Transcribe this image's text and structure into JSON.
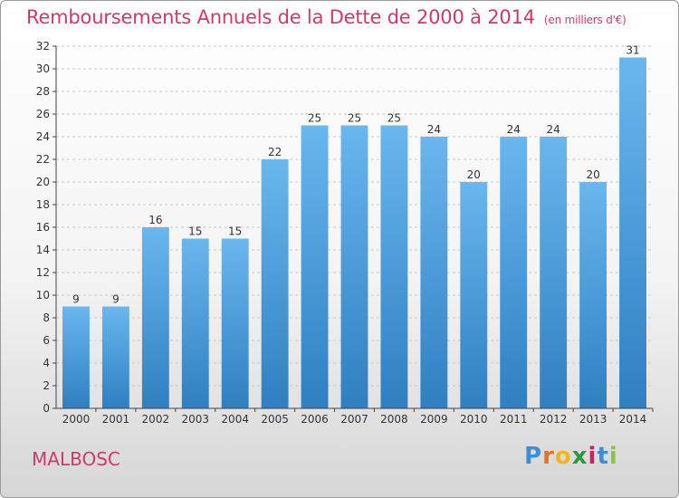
{
  "title": "Remboursements Annuels de la Dette de 2000 à 2014",
  "unit": "(en milliers d'€)",
  "commune": "MALBOSC",
  "logo": {
    "letters": [
      "P",
      "r",
      "o",
      "x",
      "i",
      "t",
      "i"
    ],
    "colors": [
      "#3b8fd9",
      "#e8731d",
      "#f2b61a",
      "#2b9a3f",
      "#c9245f",
      "#3b8fd9",
      "#8cc63e"
    ]
  },
  "colors": {
    "bar_light": "#6ab6ee",
    "bar_dark": "#2f7fc1",
    "title": "#d1386e"
  },
  "chart_data": {
    "type": "bar",
    "title": "Remboursements Annuels de la Dette de 2000 à 2014",
    "categories": [
      "2000",
      "2001",
      "2002",
      "2003",
      "2004",
      "2005",
      "2006",
      "2007",
      "2008",
      "2009",
      "2010",
      "2011",
      "2012",
      "2013",
      "2014"
    ],
    "values": [
      9,
      9,
      16,
      15,
      15,
      22,
      25,
      25,
      25,
      24,
      20,
      24,
      24,
      20,
      31
    ],
    "ylim": [
      0,
      32
    ],
    "yticks": [
      0,
      2,
      4,
      6,
      8,
      10,
      12,
      14,
      16,
      18,
      20,
      22,
      24,
      26,
      28,
      30,
      32
    ],
    "grid": true,
    "xlabel": "",
    "ylabel": ""
  }
}
